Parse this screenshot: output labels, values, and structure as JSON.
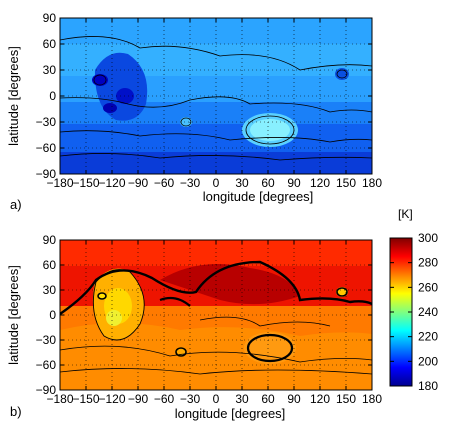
{
  "panels": [
    {
      "id": "a",
      "panel_label": "a)",
      "xlabel": "longitude [degrees]",
      "ylabel": "latitude [degrees]"
    },
    {
      "id": "b",
      "panel_label": "b)",
      "xlabel": "longitude [degrees]",
      "ylabel": "latitude [degrees]"
    }
  ],
  "colorbar": {
    "unit_label": "[K]",
    "ticks": [
      "300",
      "280",
      "260",
      "240",
      "220",
      "200",
      "180"
    ],
    "range": [
      180,
      300
    ],
    "colormap": "jet"
  },
  "chart_data": [
    {
      "type": "heatmap",
      "panel": "a)",
      "xlabel": "longitude [degrees]",
      "ylabel": "latitude [degrees]",
      "xlim": [
        -180,
        180
      ],
      "ylim": [
        -90,
        90
      ],
      "x_ticks": [
        "−180",
        "−150",
        "−120",
        "−90",
        "−60",
        "−30",
        "0",
        "30",
        "60",
        "90",
        "120",
        "150",
        "180"
      ],
      "y_ticks": [
        "90",
        "60",
        "30",
        "0",
        "−30",
        "−60",
        "−90"
      ],
      "grid": "dotted",
      "color_range_K": [
        180,
        300
      ],
      "approx_temperature_K": {
        "north_band": 218,
        "equatorial_band": 222,
        "southern_band": 212,
        "polar_south": 200,
        "tharsis_minimum": 188,
        "hellas_maximum": 234
      }
    },
    {
      "type": "heatmap",
      "panel": "b)",
      "xlabel": "longitude [degrees]",
      "ylabel": "latitude [degrees]",
      "xlim": [
        -180,
        180
      ],
      "ylim": [
        -90,
        90
      ],
      "x_ticks": [
        "−180",
        "−150",
        "−120",
        "−90",
        "−60",
        "−30",
        "0",
        "30",
        "60",
        "90",
        "120",
        "150",
        "180"
      ],
      "y_ticks": [
        "90",
        "60",
        "30",
        "0",
        "−30",
        "−60",
        "−90"
      ],
      "grid": "dotted",
      "color_range_K": [
        180,
        300
      ],
      "approx_temperature_K": {
        "north_cap": 276,
        "northern_plains": 288,
        "southern_highlands": 276,
        "tharsis_minimum": 252,
        "hellas": 276,
        "south_polar": 280
      }
    }
  ]
}
